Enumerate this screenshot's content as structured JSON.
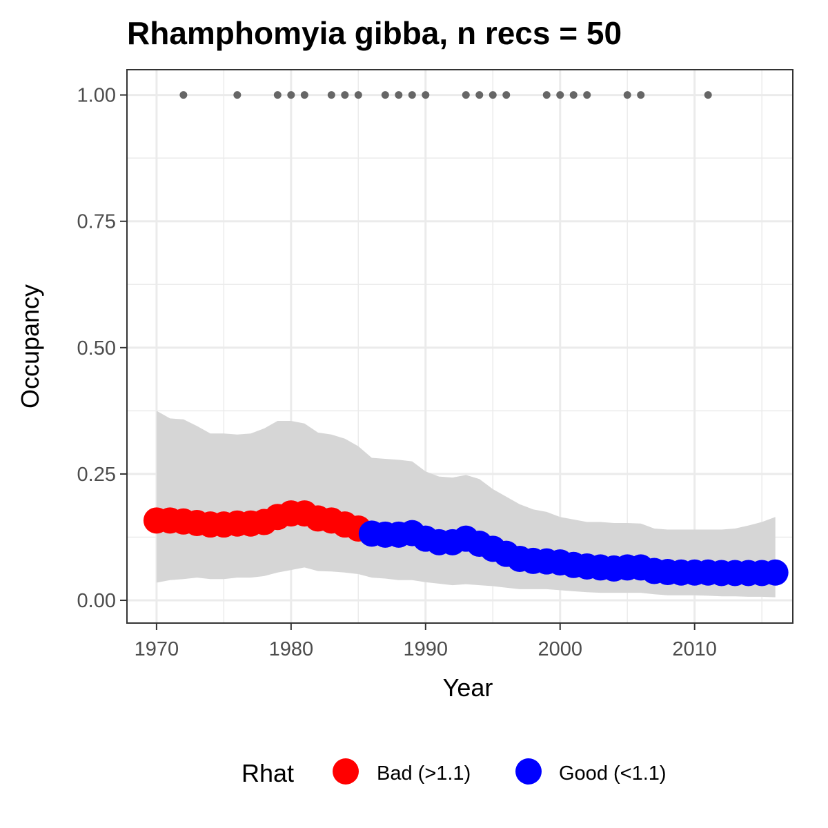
{
  "chart_data": {
    "type": "line",
    "title": "Rhamphomyia gibba, n recs = 50",
    "xlabel": "Year",
    "ylabel": "Occupancy",
    "xlim": [
      1967.8,
      2017.3
    ],
    "ylim": [
      -0.045,
      1.05
    ],
    "x_ticks": [
      1970,
      1980,
      1990,
      2000,
      2010
    ],
    "x_tick_labels": [
      "1970",
      "1980",
      "1990",
      "2000",
      "2010"
    ],
    "y_ticks": [
      0,
      0.25,
      0.5,
      0.75,
      1.0
    ],
    "y_tick_labels": [
      "0.00",
      "0.25",
      "0.50",
      "0.75",
      "1.00"
    ],
    "x_minor_ticks": [
      1975,
      1985,
      1995,
      2005,
      2015
    ],
    "y_minor_ticks": [
      0.125,
      0.375,
      0.625,
      0.875
    ],
    "grid": true,
    "legend": {
      "title": "Rhat",
      "position": "bottom",
      "entries": [
        {
          "label": "Bad (>1.1)",
          "color": "#ff0000"
        },
        {
          "label": "Good (<1.1)",
          "color": "#0000ff"
        }
      ]
    },
    "colors": {
      "bad": "#ff0000",
      "good": "#0000ff",
      "ribbon": "#d6d6d6",
      "records": "#666666",
      "grid": "#ebebeb",
      "panel_border": "#333333"
    },
    "years": [
      1970,
      1971,
      1972,
      1973,
      1974,
      1975,
      1976,
      1977,
      1978,
      1979,
      1980,
      1981,
      1982,
      1983,
      1984,
      1985,
      1986,
      1987,
      1988,
      1989,
      1990,
      1991,
      1992,
      1993,
      1994,
      1995,
      1996,
      1997,
      1998,
      1999,
      2000,
      2001,
      2002,
      2003,
      2004,
      2005,
      2006,
      2007,
      2008,
      2009,
      2010,
      2011,
      2012,
      2013,
      2014,
      2015,
      2016
    ],
    "occupancy": [
      0.158,
      0.158,
      0.156,
      0.153,
      0.15,
      0.15,
      0.152,
      0.152,
      0.155,
      0.165,
      0.172,
      0.172,
      0.162,
      0.158,
      0.15,
      0.142,
      0.132,
      0.13,
      0.13,
      0.133,
      0.122,
      0.115,
      0.115,
      0.122,
      0.112,
      0.102,
      0.092,
      0.082,
      0.078,
      0.077,
      0.075,
      0.07,
      0.067,
      0.065,
      0.063,
      0.065,
      0.065,
      0.058,
      0.056,
      0.055,
      0.055,
      0.055,
      0.054,
      0.054,
      0.054,
      0.054,
      0.055
    ],
    "rhat_status": [
      "bad",
      "bad",
      "bad",
      "bad",
      "bad",
      "bad",
      "bad",
      "bad",
      "bad",
      "bad",
      "bad",
      "bad",
      "bad",
      "bad",
      "bad",
      "bad",
      "good",
      "good",
      "good",
      "good",
      "good",
      "good",
      "good",
      "good",
      "good",
      "good",
      "good",
      "good",
      "good",
      "good",
      "good",
      "good",
      "good",
      "good",
      "good",
      "good",
      "good",
      "good",
      "good",
      "good",
      "good",
      "good",
      "good",
      "good",
      "good",
      "good",
      "good"
    ],
    "ci_upper": [
      0.375,
      0.36,
      0.358,
      0.345,
      0.33,
      0.33,
      0.328,
      0.33,
      0.34,
      0.355,
      0.355,
      0.35,
      0.332,
      0.328,
      0.32,
      0.305,
      0.282,
      0.28,
      0.278,
      0.275,
      0.255,
      0.245,
      0.243,
      0.248,
      0.24,
      0.22,
      0.205,
      0.19,
      0.18,
      0.175,
      0.165,
      0.16,
      0.155,
      0.155,
      0.153,
      0.153,
      0.152,
      0.142,
      0.14,
      0.14,
      0.14,
      0.14,
      0.14,
      0.142,
      0.148,
      0.155,
      0.165
    ],
    "ci_lower": [
      0.035,
      0.04,
      0.042,
      0.045,
      0.042,
      0.042,
      0.045,
      0.045,
      0.048,
      0.055,
      0.06,
      0.065,
      0.058,
      0.057,
      0.055,
      0.052,
      0.045,
      0.043,
      0.04,
      0.04,
      0.036,
      0.033,
      0.03,
      0.032,
      0.03,
      0.028,
      0.025,
      0.022,
      0.022,
      0.022,
      0.02,
      0.018,
      0.016,
      0.015,
      0.015,
      0.015,
      0.015,
      0.012,
      0.01,
      0.01,
      0.01,
      0.009,
      0.008,
      0.008,
      0.007,
      0.007,
      0.006
    ],
    "record_years": [
      1972,
      1976,
      1979,
      1980,
      1981,
      1983,
      1984,
      1985,
      1987,
      1988,
      1989,
      1990,
      1993,
      1994,
      1995,
      1996,
      1999,
      2000,
      2001,
      2002,
      2005,
      2006,
      2011
    ],
    "record_value": 1.0
  }
}
